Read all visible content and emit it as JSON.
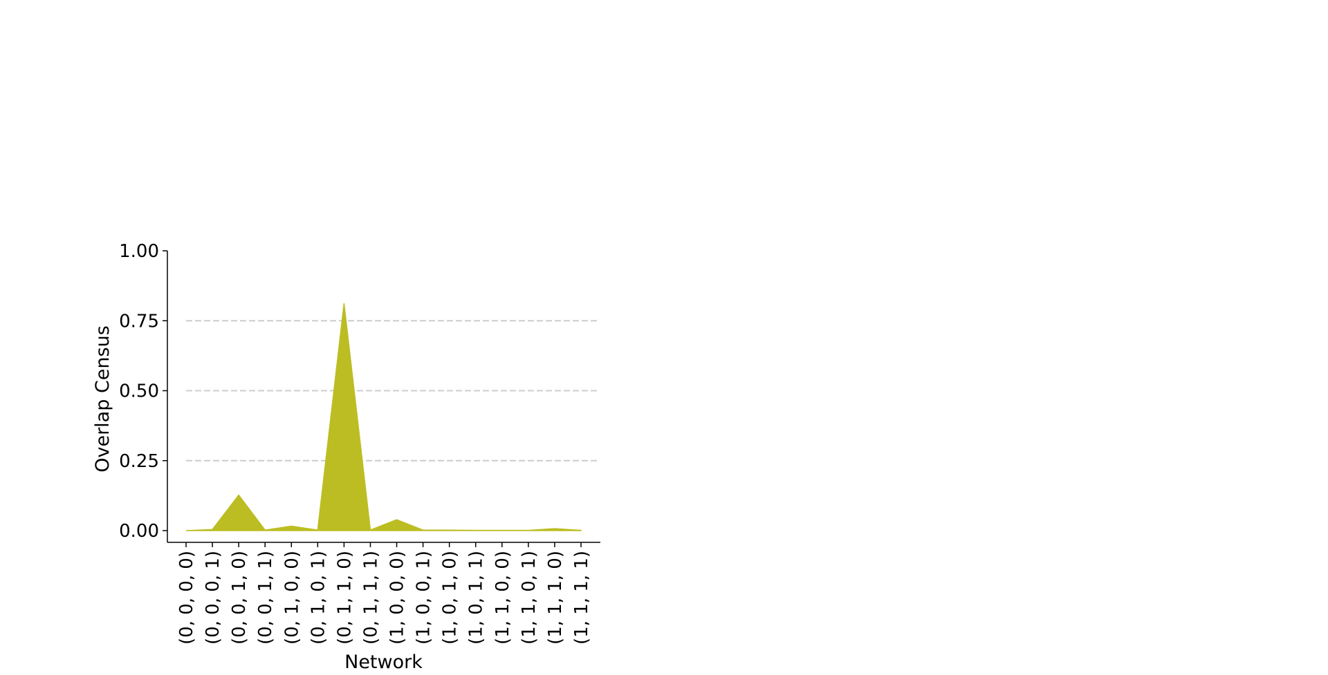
{
  "chart_data": {
    "type": "area",
    "title": "",
    "xlabel": "Network",
    "ylabel": "Overlap Census",
    "categories": [
      "(0, 0, 0, 0)",
      "(0, 0, 0, 1)",
      "(0, 0, 1, 0)",
      "(0, 0, 1, 1)",
      "(0, 1, 0, 0)",
      "(0, 1, 0, 1)",
      "(0, 1, 1, 0)",
      "(0, 1, 1, 1)",
      "(1, 0, 0, 0)",
      "(1, 0, 0, 1)",
      "(1, 0, 1, 0)",
      "(1, 0, 1, 1)",
      "(1, 1, 0, 0)",
      "(1, 1, 0, 1)",
      "(1, 1, 1, 0)",
      "(1, 1, 1, 1)"
    ],
    "values": [
      0.0,
      0.004,
      0.127,
      0.002,
      0.016,
      0.002,
      0.812,
      0.002,
      0.039,
      0.002,
      0.002,
      0.001,
      0.001,
      0.001,
      0.007,
      0.001
    ],
    "ylim": [
      0,
      1.0
    ],
    "yticks": [
      0.0,
      0.25,
      0.5,
      0.75,
      1.0
    ],
    "ytick_labels": [
      "0.00",
      "0.25",
      "0.50",
      "0.75",
      "1.00"
    ],
    "grid": "horizontal dashed",
    "fill_color": "#bcbd22",
    "grid_color": "#cccccc",
    "axis_color": "#000000"
  }
}
